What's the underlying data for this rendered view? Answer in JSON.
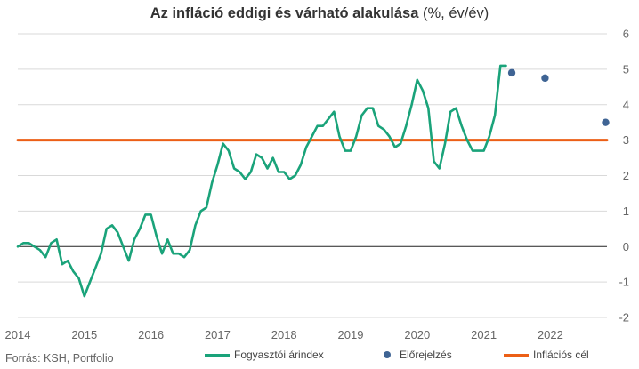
{
  "chart_data": {
    "type": "line",
    "title_bold": "Az infláció eddigi és várható alakulása",
    "title_suffix": " (%, év/év)",
    "ylim": [
      -2,
      6
    ],
    "yticks": [
      "6",
      "5",
      "4",
      "3",
      "2",
      "1",
      "0",
      "-1",
      "-2"
    ],
    "xlim": [
      2014.0,
      2022.85
    ],
    "xticks": [
      "2014",
      "2015",
      "2016",
      "2017",
      "2018",
      "2019",
      "2020",
      "2021",
      "2022"
    ],
    "grid": true,
    "series": [
      {
        "name": "Fogyasztói árindex",
        "type": "line",
        "color": "#1aa37a",
        "x": [
          2014.0,
          2014.083,
          2014.167,
          2014.25,
          2014.333,
          2014.417,
          2014.5,
          2014.583,
          2014.667,
          2014.75,
          2014.833,
          2014.917,
          2015.0,
          2015.083,
          2015.167,
          2015.25,
          2015.333,
          2015.417,
          2015.5,
          2015.583,
          2015.667,
          2015.75,
          2015.833,
          2015.917,
          2016.0,
          2016.083,
          2016.167,
          2016.25,
          2016.333,
          2016.417,
          2016.5,
          2016.583,
          2016.667,
          2016.75,
          2016.833,
          2016.917,
          2017.0,
          2017.083,
          2017.167,
          2017.25,
          2017.333,
          2017.417,
          2017.5,
          2017.583,
          2017.667,
          2017.75,
          2017.833,
          2017.917,
          2018.0,
          2018.083,
          2018.167,
          2018.25,
          2018.333,
          2018.417,
          2018.5,
          2018.583,
          2018.667,
          2018.75,
          2018.833,
          2018.917,
          2019.0,
          2019.083,
          2019.167,
          2019.25,
          2019.333,
          2019.417,
          2019.5,
          2019.583,
          2019.667,
          2019.75,
          2019.833,
          2019.917,
          2020.0,
          2020.083,
          2020.167,
          2020.25,
          2020.333,
          2020.417,
          2020.5,
          2020.583,
          2020.667,
          2020.75,
          2020.833,
          2020.917,
          2021.0,
          2021.083,
          2021.167,
          2021.25,
          2021.333
        ],
        "values": [
          0.0,
          0.1,
          0.1,
          0.0,
          -0.1,
          -0.3,
          0.1,
          0.2,
          -0.5,
          -0.4,
          -0.7,
          -0.9,
          -1.4,
          -1.0,
          -0.6,
          -0.2,
          0.5,
          0.6,
          0.4,
          0.0,
          -0.4,
          0.2,
          0.5,
          0.9,
          0.9,
          0.3,
          -0.2,
          0.2,
          -0.2,
          -0.2,
          -0.3,
          -0.1,
          0.6,
          1.0,
          1.1,
          1.8,
          2.3,
          2.9,
          2.7,
          2.2,
          2.1,
          1.9,
          2.1,
          2.6,
          2.5,
          2.2,
          2.5,
          2.1,
          2.1,
          1.9,
          2.0,
          2.3,
          2.8,
          3.1,
          3.4,
          3.4,
          3.6,
          3.8,
          3.1,
          2.7,
          2.7,
          3.1,
          3.7,
          3.9,
          3.9,
          3.4,
          3.3,
          3.1,
          2.8,
          2.9,
          3.4,
          4.0,
          4.7,
          4.4,
          3.9,
          2.4,
          2.2,
          2.9,
          3.8,
          3.9,
          3.4,
          3.0,
          2.7,
          2.7,
          2.7,
          3.1,
          3.7,
          5.1,
          5.1
        ]
      },
      {
        "name": "Előrejelzés",
        "type": "scatter",
        "color": "#3f6494",
        "x": [
          2021.42,
          2021.92,
          2022.83
        ],
        "values": [
          4.9,
          4.75,
          3.5
        ]
      },
      {
        "name": "Inflációs cél",
        "type": "line",
        "color": "#ec5f16",
        "x": [
          2014.0,
          2022.85
        ],
        "values": [
          3.0,
          3.0
        ]
      }
    ]
  },
  "source": "Forrás: KSH, Portfolio",
  "legend": [
    {
      "label": "Fogyasztói árindex",
      "color": "#1aa37a",
      "shape": "line"
    },
    {
      "label": "Előrejelzés",
      "color": "#3f6494",
      "shape": "dot"
    },
    {
      "label": "Inflációs cél",
      "color": "#ec5f16",
      "shape": "line"
    }
  ],
  "colors": {
    "grid": "#d9d9d9",
    "zero_line": "#222222",
    "axis_text": "#666666"
  }
}
